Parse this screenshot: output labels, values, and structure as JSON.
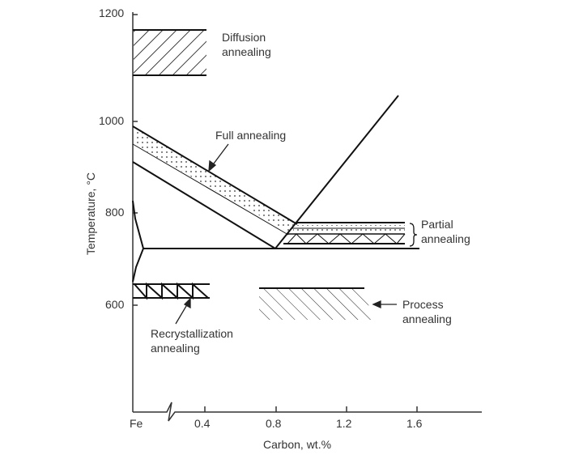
{
  "y_axis": {
    "label": "Temperature, °C",
    "ticks": [
      "1200",
      "1000",
      "800",
      "600"
    ]
  },
  "x_axis": {
    "label": "Carbon, wt.%",
    "ticks": [
      "Fe",
      "0.4",
      "0.8",
      "1.2",
      "1.6"
    ]
  },
  "regions": {
    "diffusion": {
      "line1": "Diffusion",
      "line2": "annealing"
    },
    "full": {
      "label": "Full annealing"
    },
    "partial": {
      "line1": "Partial",
      "line2": "annealing"
    },
    "process": {
      "line1": "Process",
      "line2": "annealing"
    },
    "recrystallization": {
      "line1": "Recrystallization",
      "line2": "annealing"
    }
  }
}
